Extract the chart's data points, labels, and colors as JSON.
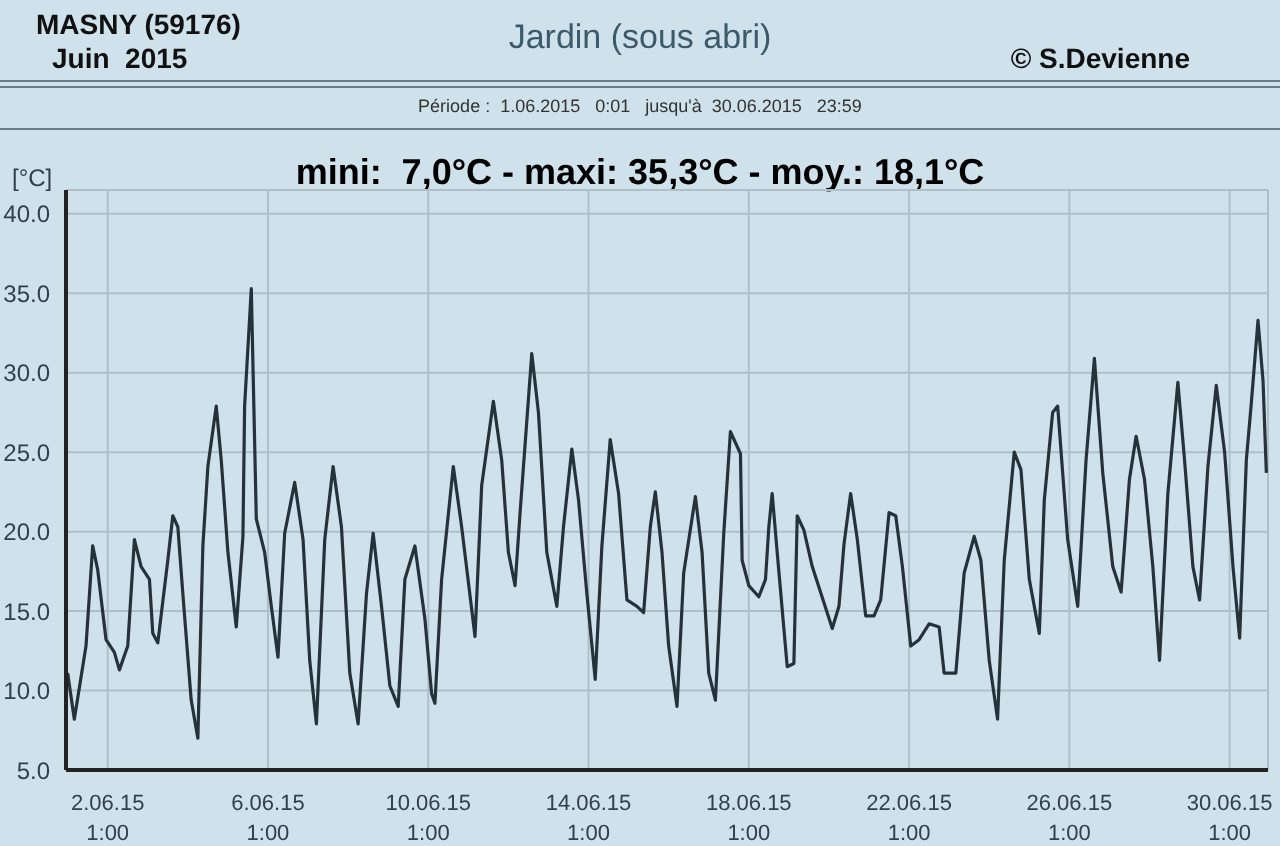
{
  "chart_data": {
    "type": "line",
    "title": "Jardin (sous abri)",
    "subtitle": "mini:  7,0°C - maxi: 35,3°C - moy.: 18,1°C",
    "ylabel": "[°C]",
    "annotations": [
      "MASNY (59176)",
      "Juin  2015",
      "© S.Devienne",
      "Période :  1.06.2015   0:01   jusqu'à  30.06.2015   23:59"
    ],
    "x": [
      "2015-06-01T01:00",
      "2015-06-01T05:00",
      "2015-06-01T12:00",
      "2015-06-01T16:00",
      "2015-06-01T19:00",
      "2015-06-02T00:00",
      "2015-06-02T05:00",
      "2015-06-02T08:00",
      "2015-06-02T13:00",
      "2015-06-02T17:00",
      "2015-06-02T21:00",
      "2015-06-03T02:00",
      "2015-06-03T04:00",
      "2015-06-03T07:00",
      "2015-06-03T13:00",
      "2015-06-03T16:00",
      "2015-06-03T19:00",
      "2015-06-03T22:00",
      "2015-06-04T03:00",
      "2015-06-04T07:00",
      "2015-06-04T10:00",
      "2015-06-04T13:00",
      "2015-06-04T18:00",
      "2015-06-04T21:00",
      "2015-06-05T01:00",
      "2015-06-05T06:00",
      "2015-06-05T10:00",
      "2015-06-05T11:00",
      "2015-06-05T15:00",
      "2015-06-05T18:00",
      "2015-06-05T23:00",
      "2015-06-06T03:00",
      "2015-06-06T07:00",
      "2015-06-06T11:00",
      "2015-06-06T17:00",
      "2015-06-06T22:00",
      "2015-06-07T02:00",
      "2015-06-07T06:00",
      "2015-06-07T11:00",
      "2015-06-07T16:00",
      "2015-06-07T21:00",
      "2015-06-08T02:00",
      "2015-06-08T07:00",
      "2015-06-08T12:00",
      "2015-06-08T16:00",
      "2015-06-08T21:00",
      "2015-06-09T02:00",
      "2015-06-09T07:00",
      "2015-06-09T11:00",
      "2015-06-09T17:00",
      "2015-06-09T23:00",
      "2015-06-10T03:00",
      "2015-06-10T05:00",
      "2015-06-10T09:00",
      "2015-06-10T16:00",
      "2015-06-10T21:00",
      "2015-06-11T05:00",
      "2015-06-11T09:00",
      "2015-06-11T16:00",
      "2015-06-11T21:00",
      "2015-06-12T01:00",
      "2015-06-12T05:00",
      "2015-06-12T08:00",
      "2015-06-12T15:00",
      "2015-06-12T19:00",
      "2015-06-13T00:00",
      "2015-06-13T06:00",
      "2015-06-13T10:00",
      "2015-06-13T15:00",
      "2015-06-13T19:00",
      "2015-06-14T00:00",
      "2015-06-14T05:00",
      "2015-06-14T09:00",
      "2015-06-14T14:00",
      "2015-06-14T19:00",
      "2015-06-15T00:00",
      "2015-06-15T06:00",
      "2015-06-15T10:00",
      "2015-06-15T14:00",
      "2015-06-15T17:00",
      "2015-06-15T21:00",
      "2015-06-16T01:00",
      "2015-06-16T06:00",
      "2015-06-16T10:00",
      "2015-06-16T17:00",
      "2015-06-16T21:00",
      "2015-06-17T01:00",
      "2015-06-17T05:00",
      "2015-06-17T10:00",
      "2015-06-17T14:00",
      "2015-06-17T20:00",
      "2015-06-17T21:00",
      "2015-06-18T01:00",
      "2015-06-18T07:00",
      "2015-06-18T11:00",
      "2015-06-18T13:00",
      "2015-06-18T15:00",
      "2015-06-18T18:00",
      "2015-06-19T00:00",
      "2015-06-19T04:00",
      "2015-06-19T06:00",
      "2015-06-19T10:00",
      "2015-06-19T15:00",
      "2015-06-20T03:00",
      "2015-06-20T07:00",
      "2015-06-20T10:00",
      "2015-06-20T14:00",
      "2015-06-20T18:00",
      "2015-06-20T23:00",
      "2015-06-21T04:00",
      "2015-06-21T08:00",
      "2015-06-21T13:00",
      "2015-06-21T17:00",
      "2015-06-21T21:00",
      "2015-06-22T02:00",
      "2015-06-22T07:00",
      "2015-06-22T13:00",
      "2015-06-22T19:00",
      "2015-06-22T22:00",
      "2015-06-23T05:00",
      "2015-06-23T10:00",
      "2015-06-23T16:00",
      "2015-06-23T20:00",
      "2015-06-24T01:00",
      "2015-06-24T06:00",
      "2015-06-24T10:00",
      "2015-06-24T16:00",
      "2015-06-24T20:00",
      "2015-06-25T01:00",
      "2015-06-25T07:00",
      "2015-06-25T10:00",
      "2015-06-25T15:00",
      "2015-06-25T18:00",
      "2015-06-26T00:00",
      "2015-06-26T06:00",
      "2015-06-26T11:00",
      "2015-06-26T16:00",
      "2015-06-26T21:00",
      "2015-06-27T03:00",
      "2015-06-27T08:00",
      "2015-06-27T13:00",
      "2015-06-27T17:00",
      "2015-06-27T22:00",
      "2015-06-28T03:00",
      "2015-06-28T07:00",
      "2015-06-28T12:00",
      "2015-06-28T18:00",
      "2015-06-28T22:00",
      "2015-06-29T03:00",
      "2015-06-29T07:00",
      "2015-06-29T12:00",
      "2015-06-29T17:00",
      "2015-06-29T22:00",
      "2015-06-30T03:00",
      "2015-06-30T07:00",
      "2015-06-30T11:00",
      "2015-06-30T14:00",
      "2015-06-30T18:00",
      "2015-06-30T21:00",
      "2015-06-30T23:00"
    ],
    "series": [
      {
        "color": "#26323a",
        "values": [
          11.1,
          8.2,
          12.8,
          19.1,
          17.6,
          13.2,
          12.4,
          11.3,
          12.8,
          19.5,
          17.8,
          17.0,
          13.6,
          13.0,
          18.2,
          21.0,
          20.3,
          16.1,
          9.4,
          7.0,
          19.1,
          24.1,
          27.9,
          24.5,
          18.7,
          14.0,
          19.7,
          27.9,
          35.3,
          20.8,
          18.7,
          15.3,
          12.1,
          19.9,
          23.1,
          19.5,
          11.9,
          7.9,
          19.5,
          24.1,
          20.3,
          11.1,
          7.9,
          16.1,
          19.9,
          15.3,
          10.3,
          9.0,
          17.0,
          19.1,
          14.5,
          9.8,
          9.2,
          17.0,
          24.1,
          20.3,
          13.4,
          22.9,
          28.2,
          24.5,
          18.7,
          16.6,
          21.2,
          31.2,
          27.5,
          18.7,
          15.3,
          20.3,
          25.2,
          22.0,
          16.1,
          10.7,
          19.1,
          25.8,
          22.4,
          15.7,
          15.3,
          14.9,
          20.3,
          22.5,
          18.7,
          12.8,
          9.0,
          17.4,
          22.2,
          18.7,
          11.1,
          9.4,
          19.9,
          26.3,
          24.9,
          18.2,
          16.6,
          15.9,
          17.0,
          20.3,
          22.4,
          18.7,
          11.5,
          11.7,
          21.0,
          20.1,
          17.8,
          13.9,
          15.3,
          19.2,
          22.4,
          19.5,
          14.7,
          14.7,
          15.7,
          21.2,
          21.0,
          17.8,
          12.8,
          13.2,
          14.2,
          14.0,
          11.1,
          11.1,
          17.4,
          19.7,
          18.2,
          11.9,
          8.2,
          18.2,
          25.0,
          23.9,
          17.0,
          13.6,
          22.0,
          27.5,
          27.9,
          19.5,
          15.3,
          24.5,
          30.9,
          23.7,
          17.8,
          16.2,
          23.3,
          26.0,
          23.3,
          17.8,
          11.9,
          22.4,
          29.4,
          24.5,
          17.8,
          15.7,
          24.1,
          29.2,
          25.0,
          17.8,
          13.3,
          24.5,
          28.1,
          33.3,
          29.5,
          23.7
        ]
      }
    ],
    "xlim": [
      "2015-06-01T00:01",
      "2015-06-30T23:59"
    ],
    "xticks": [
      {
        "value": "2015-06-02T01:00",
        "label": "2.06.15\n1:00"
      },
      {
        "value": "2015-06-06T01:00",
        "label": "6.06.15\n1:00"
      },
      {
        "value": "2015-06-10T01:00",
        "label": "10.06.15\n1:00"
      },
      {
        "value": "2015-06-14T01:00",
        "label": "14.06.15\n1:00"
      },
      {
        "value": "2015-06-18T01:00",
        "label": "18.06.15\n1:00"
      },
      {
        "value": "2015-06-22T01:00",
        "label": "22.06.15\n1:00"
      },
      {
        "value": "2015-06-26T01:00",
        "label": "26.06.15\n1:00"
      },
      {
        "value": "2015-06-30T01:00",
        "label": "30.06.15\n1:00"
      }
    ],
    "ylim": [
      5,
      41.5
    ],
    "yticks": [
      {
        "value": 5,
        "label": "5.0"
      },
      {
        "value": 10,
        "label": "10.0"
      },
      {
        "value": 15,
        "label": "15.0"
      },
      {
        "value": 20,
        "label": "20.0"
      },
      {
        "value": 25,
        "label": "25.0"
      },
      {
        "value": 30,
        "label": "30.0"
      },
      {
        "value": 35,
        "label": "35.0"
      },
      {
        "value": 40,
        "label": "40.0"
      }
    ],
    "grid": true,
    "legend": false,
    "marker": "none",
    "line_style": "solid"
  }
}
